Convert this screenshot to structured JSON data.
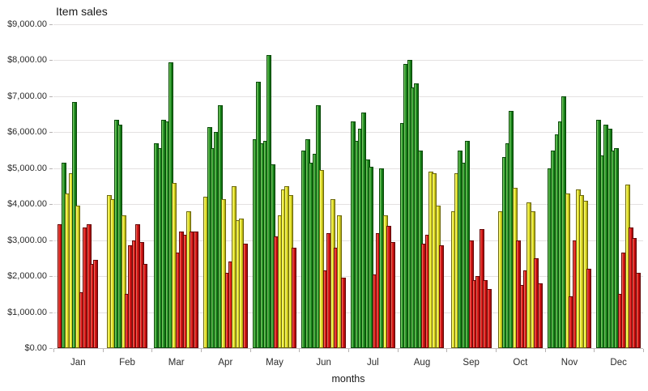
{
  "title": "Item sales",
  "x_axis_title": "months",
  "y_axis": {
    "labels": [
      "$9,000.00",
      "$8,000.00",
      "$7,000.00",
      "$6,000.00",
      "$5,000.00",
      "$4,000.00",
      "$3,000.00",
      "$2,000.00",
      "$1,000.00",
      "$0.00"
    ],
    "min": 0,
    "max": 9000,
    "step": 1000
  },
  "chart_data": {
    "type": "bar",
    "title": "Item sales",
    "xlabel": "months",
    "ylabel": "",
    "ylim": [
      0,
      9000
    ],
    "grid": true,
    "legend": "none",
    "y_tick_prefix": "$",
    "categories": [
      "Jan",
      "Feb",
      "Mar",
      "Apr",
      "May",
      "Jun",
      "Jul",
      "Aug",
      "Sep",
      "Oct",
      "Nov",
      "Dec"
    ],
    "color_rule": {
      "red_below": 3500,
      "yellow_below": 5000,
      "green_at_or_above": 5000
    },
    "colors": {
      "green": "#1e8f1e",
      "yellow": "#e8e22c",
      "red": "#dd1414"
    },
    "values_by_month": {
      "Jan": [
        3450,
        5150,
        4300,
        4850,
        6850,
        3950,
        1550,
        3350,
        3450,
        2350,
        2450
      ],
      "Feb": [
        4250,
        4150,
        6350,
        6200,
        3700,
        1500,
        2850,
        3000,
        3450,
        2950,
        2350
      ],
      "Mar": [
        5700,
        5550,
        6350,
        6300,
        7950,
        4600,
        2650,
        3250,
        3150,
        3800,
        3250,
        3250
      ],
      "Apr": [
        4200,
        6150,
        5550,
        6000,
        6750,
        4150,
        2100,
        2400,
        4500,
        3550,
        3600,
        2900
      ],
      "May": [
        5800,
        7400,
        5700,
        5750,
        8150,
        5100,
        3100,
        3700,
        4400,
        4500,
        4250,
        2800
      ],
      "Jun": [
        5500,
        5800,
        5150,
        5400,
        6750,
        4950,
        2150,
        3200,
        4150,
        2800,
        3700,
        1950
      ],
      "Jul": [
        6300,
        5750,
        6100,
        6550,
        5250,
        5050,
        2050,
        3200,
        5000,
        3700,
        3400,
        2950
      ],
      "Aug": [
        6250,
        7900,
        8000,
        7250,
        7350,
        5500,
        2900,
        3150,
        4900,
        4850,
        3950,
        2850
      ],
      "Sep": [
        3800,
        4850,
        5500,
        5150,
        5750,
        3000,
        1900,
        2000,
        3300,
        1900,
        1650
      ],
      "Oct": [
        3800,
        5300,
        5700,
        6600,
        4450,
        3000,
        1750,
        2150,
        4050,
        3800,
        2500,
        1800
      ],
      "Nov": [
        5000,
        5500,
        5950,
        6300,
        7000,
        4300,
        1450,
        3000,
        4400,
        4250,
        4100,
        2200
      ],
      "Dec": [
        6350,
        5350,
        6200,
        6100,
        5500,
        5550,
        1500,
        2650,
        4550,
        3350,
        3050,
        2100
      ]
    }
  }
}
